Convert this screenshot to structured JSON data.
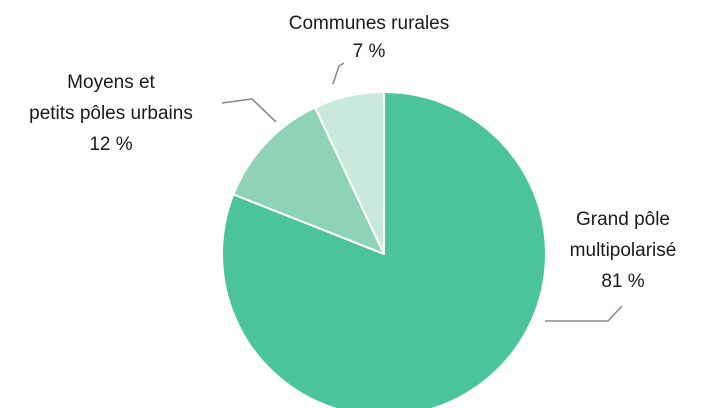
{
  "chart_data": {
    "type": "pie",
    "title": "",
    "slices": [
      {
        "label_lines": [
          "Grand pôle",
          "multipolarisé"
        ],
        "value": 81,
        "value_label": "81 %",
        "color": "#4bc39b"
      },
      {
        "label_lines": [
          "Moyens et",
          "petits pôles urbains"
        ],
        "value": 12,
        "value_label": "12 %",
        "color": "#8fd3b7"
      },
      {
        "label_lines": [
          "Communes rurales"
        ],
        "value": 7,
        "value_label": "7 %",
        "color": "#c8e9dc"
      }
    ],
    "start": "top",
    "direction": "clockwise",
    "legend": "none"
  }
}
